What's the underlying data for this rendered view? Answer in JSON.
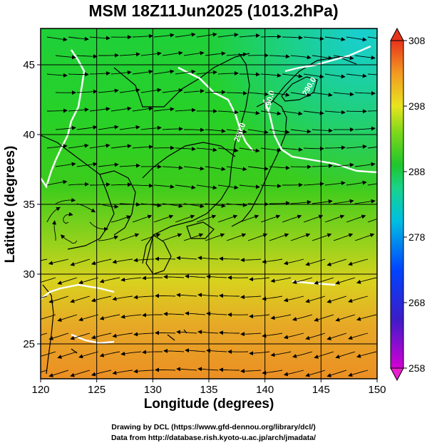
{
  "title": "MSM 18Z11Jun2025 (1013.2hPa)",
  "axes": {
    "xlabel": "Longitude (degrees)",
    "ylabel": "Latitude  (degrees)",
    "xlim": [
      120,
      150
    ],
    "ylim": [
      22.5,
      47.6
    ],
    "xticks": [
      "120",
      "125",
      "130",
      "135",
      "140",
      "145",
      "150"
    ],
    "yticks": [
      "25",
      "30",
      "35",
      "40",
      "45"
    ]
  },
  "colorbar": {
    "min": 258,
    "max": 308,
    "ticks": [
      "308",
      "298",
      "288",
      "278",
      "268",
      "258"
    ]
  },
  "contours": {
    "label": "290.0",
    "color": "#ffffff"
  },
  "credits": {
    "line1": "Drawing by DCL (https://www.gfd-dennou.org/library/dcl/)",
    "line2": "Data from http://database.rish.kyoto-u.ac.jp/arch/jmadata/"
  },
  "colors": {
    "land_outline": "#000000",
    "streamline": "#000000",
    "grid": "#000000"
  }
}
